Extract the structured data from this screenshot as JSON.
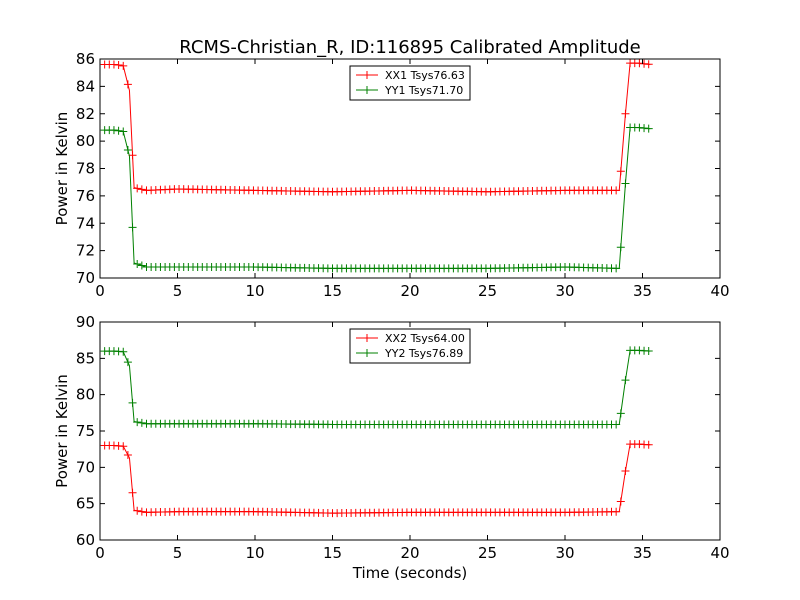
{
  "title": "RCMS-Christian_R, ID:116895 Calibrated Amplitude",
  "xlabel": "Time (seconds)",
  "colors": {
    "red": "#ff0000",
    "green": "#008000",
    "axes": "#000000",
    "background": "#ffffff"
  },
  "chart_data": [
    {
      "type": "line",
      "ylabel": "Power in Kelvin",
      "xlim": [
        0,
        40
      ],
      "ylim": [
        70,
        86
      ],
      "xticks": [
        0,
        5,
        10,
        15,
        20,
        25,
        30,
        35,
        40
      ],
      "yticks": [
        70,
        72,
        74,
        76,
        78,
        80,
        82,
        84,
        86
      ],
      "grid": false,
      "legend_position": "top-center",
      "series": [
        {
          "name": "XX1 Tsys76.63",
          "color": "#ff0000",
          "marker": "+",
          "x": [
            0.3,
            1.0,
            1.5,
            1.9,
            2.2,
            3.0,
            5.0,
            10.0,
            15.0,
            20.0,
            25.0,
            30.0,
            33.5,
            33.9,
            34.2,
            34.7,
            35.5
          ],
          "y": [
            85.6,
            85.6,
            85.5,
            83.7,
            76.6,
            76.4,
            76.5,
            76.4,
            76.3,
            76.4,
            76.3,
            76.4,
            76.4,
            82.0,
            85.7,
            85.7,
            85.6
          ]
        },
        {
          "name": "YY1 Tsys71.70",
          "color": "#008000",
          "marker": "+",
          "x": [
            0.3,
            1.0,
            1.5,
            1.9,
            2.2,
            3.0,
            5.0,
            10.0,
            15.0,
            20.0,
            25.0,
            30.0,
            33.5,
            33.9,
            34.2,
            34.7,
            35.5
          ],
          "y": [
            80.8,
            80.8,
            80.7,
            78.9,
            71.1,
            70.8,
            70.8,
            70.8,
            70.7,
            70.7,
            70.7,
            70.8,
            70.7,
            76.9,
            81.0,
            81.0,
            80.9
          ]
        }
      ]
    },
    {
      "type": "line",
      "ylabel": "Power in Kelvin",
      "xlabel": "Time (seconds)",
      "xlim": [
        0,
        40
      ],
      "ylim": [
        60,
        90
      ],
      "xticks": [
        0,
        5,
        10,
        15,
        20,
        25,
        30,
        35,
        40
      ],
      "yticks": [
        60,
        65,
        70,
        75,
        80,
        85,
        90
      ],
      "grid": false,
      "legend_position": "top-center",
      "series": [
        {
          "name": "XX2 Tsys64.00",
          "color": "#ff0000",
          "marker": "+",
          "x": [
            0.3,
            1.0,
            1.5,
            1.9,
            2.2,
            3.0,
            5.0,
            10.0,
            15.0,
            20.0,
            25.0,
            30.0,
            33.5,
            33.9,
            34.2,
            34.7,
            35.5
          ],
          "y": [
            73.0,
            73.0,
            72.9,
            71.3,
            64.1,
            63.8,
            63.9,
            63.9,
            63.7,
            63.8,
            63.8,
            63.8,
            63.9,
            69.5,
            73.2,
            73.2,
            73.1
          ]
        },
        {
          "name": "YY2 Tsys76.89",
          "color": "#008000",
          "marker": "+",
          "x": [
            0.3,
            1.0,
            1.5,
            1.9,
            2.2,
            3.0,
            5.0,
            10.0,
            15.0,
            20.0,
            25.0,
            30.0,
            33.5,
            33.9,
            34.2,
            34.7,
            35.5
          ],
          "y": [
            86.0,
            86.0,
            85.9,
            84.0,
            76.3,
            76.0,
            76.0,
            76.0,
            75.9,
            75.9,
            75.9,
            75.9,
            75.9,
            82.0,
            86.1,
            86.1,
            86.0
          ]
        }
      ]
    }
  ]
}
